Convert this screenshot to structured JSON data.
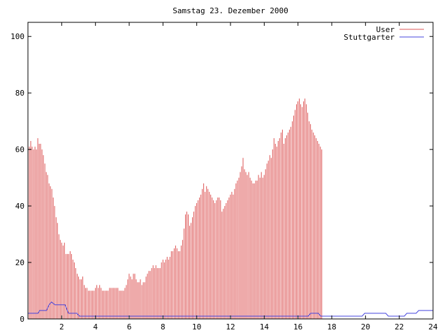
{
  "chart_data": {
    "type": "bar",
    "title": "Samstag 23. Dezember 2000",
    "xlabel": "",
    "ylabel": "",
    "xlim": [
      0,
      24
    ],
    "ylim": [
      0,
      105
    ],
    "x_ticks": [
      2,
      4,
      6,
      8,
      10,
      12,
      14,
      16,
      18,
      20,
      22,
      24
    ],
    "y_ticks": [
      0,
      20,
      40,
      60,
      80,
      100
    ],
    "x_tick_labels": [
      "2",
      "4",
      "6",
      "8",
      "10",
      "12",
      "14",
      "16",
      "18",
      "20",
      "22",
      "24"
    ],
    "y_tick_labels": [
      "0",
      "20",
      "40",
      "60",
      "80",
      "100"
    ],
    "grid": false,
    "legend_position": "top-right",
    "series": [
      {
        "name": "User",
        "style": "impulses",
        "color": "#dd5555",
        "x_start": 0,
        "x_step": 0.0833,
        "values": [
          62,
          61,
          63,
          61,
          60,
          61,
          60,
          64,
          62,
          62,
          60,
          58,
          55,
          52,
          51,
          48,
          47,
          46,
          43,
          40,
          36,
          34,
          30,
          28,
          27,
          26,
          27,
          23,
          23,
          23,
          24,
          23,
          21,
          20,
          18,
          16,
          15,
          14,
          14,
          15,
          12,
          11,
          11,
          10,
          10,
          10,
          10,
          10,
          11,
          12,
          11,
          12,
          11,
          10,
          10,
          10,
          10,
          10,
          11,
          11,
          11,
          11,
          11,
          11,
          11,
          10,
          10,
          10,
          10,
          11,
          12,
          14,
          16,
          15,
          14,
          16,
          16,
          14,
          13,
          13,
          14,
          12,
          13,
          13,
          15,
          16,
          17,
          17,
          18,
          19,
          18,
          19,
          18,
          18,
          18,
          20,
          21,
          20,
          21,
          22,
          21,
          22,
          24,
          24,
          25,
          26,
          25,
          24,
          24,
          26,
          28,
          32,
          37,
          38,
          37,
          33,
          34,
          36,
          38,
          40,
          41,
          42,
          43,
          44,
          46,
          48,
          45,
          47,
          46,
          45,
          44,
          43,
          42,
          41,
          42,
          43,
          43,
          42,
          38,
          39,
          40,
          41,
          42,
          43,
          44,
          45,
          44,
          46,
          48,
          49,
          50,
          52,
          54,
          57,
          53,
          52,
          51,
          52,
          50,
          49,
          48,
          48,
          49,
          49,
          51,
          50,
          52,
          50,
          51,
          53,
          55,
          56,
          58,
          57,
          60,
          64,
          62,
          61,
          63,
          64,
          66,
          67,
          62,
          64,
          65,
          66,
          67,
          68,
          70,
          72,
          74,
          76,
          77,
          78,
          76,
          75,
          77,
          78,
          76,
          73,
          70,
          69,
          67,
          66,
          65,
          64,
          63,
          62,
          61,
          60
        ]
      },
      {
        "name": "Stuttgarter",
        "style": "lines",
        "color": "#4444dd",
        "points": [
          [
            0,
            2
          ],
          [
            0.6,
            2
          ],
          [
            0.7,
            3
          ],
          [
            1.1,
            3
          ],
          [
            1.25,
            5
          ],
          [
            1.4,
            6
          ],
          [
            1.6,
            5
          ],
          [
            2.2,
            5
          ],
          [
            2.4,
            2
          ],
          [
            2.9,
            2
          ],
          [
            3.05,
            1
          ],
          [
            16.6,
            1
          ],
          [
            16.75,
            2
          ],
          [
            17.2,
            2
          ],
          [
            17.35,
            1
          ],
          [
            19.8,
            1
          ],
          [
            19.95,
            2
          ],
          [
            21.2,
            2
          ],
          [
            21.35,
            1
          ],
          [
            22.3,
            1
          ],
          [
            22.45,
            2
          ],
          [
            23.0,
            2
          ],
          [
            23.15,
            3
          ],
          [
            24,
            3
          ]
        ]
      }
    ]
  }
}
